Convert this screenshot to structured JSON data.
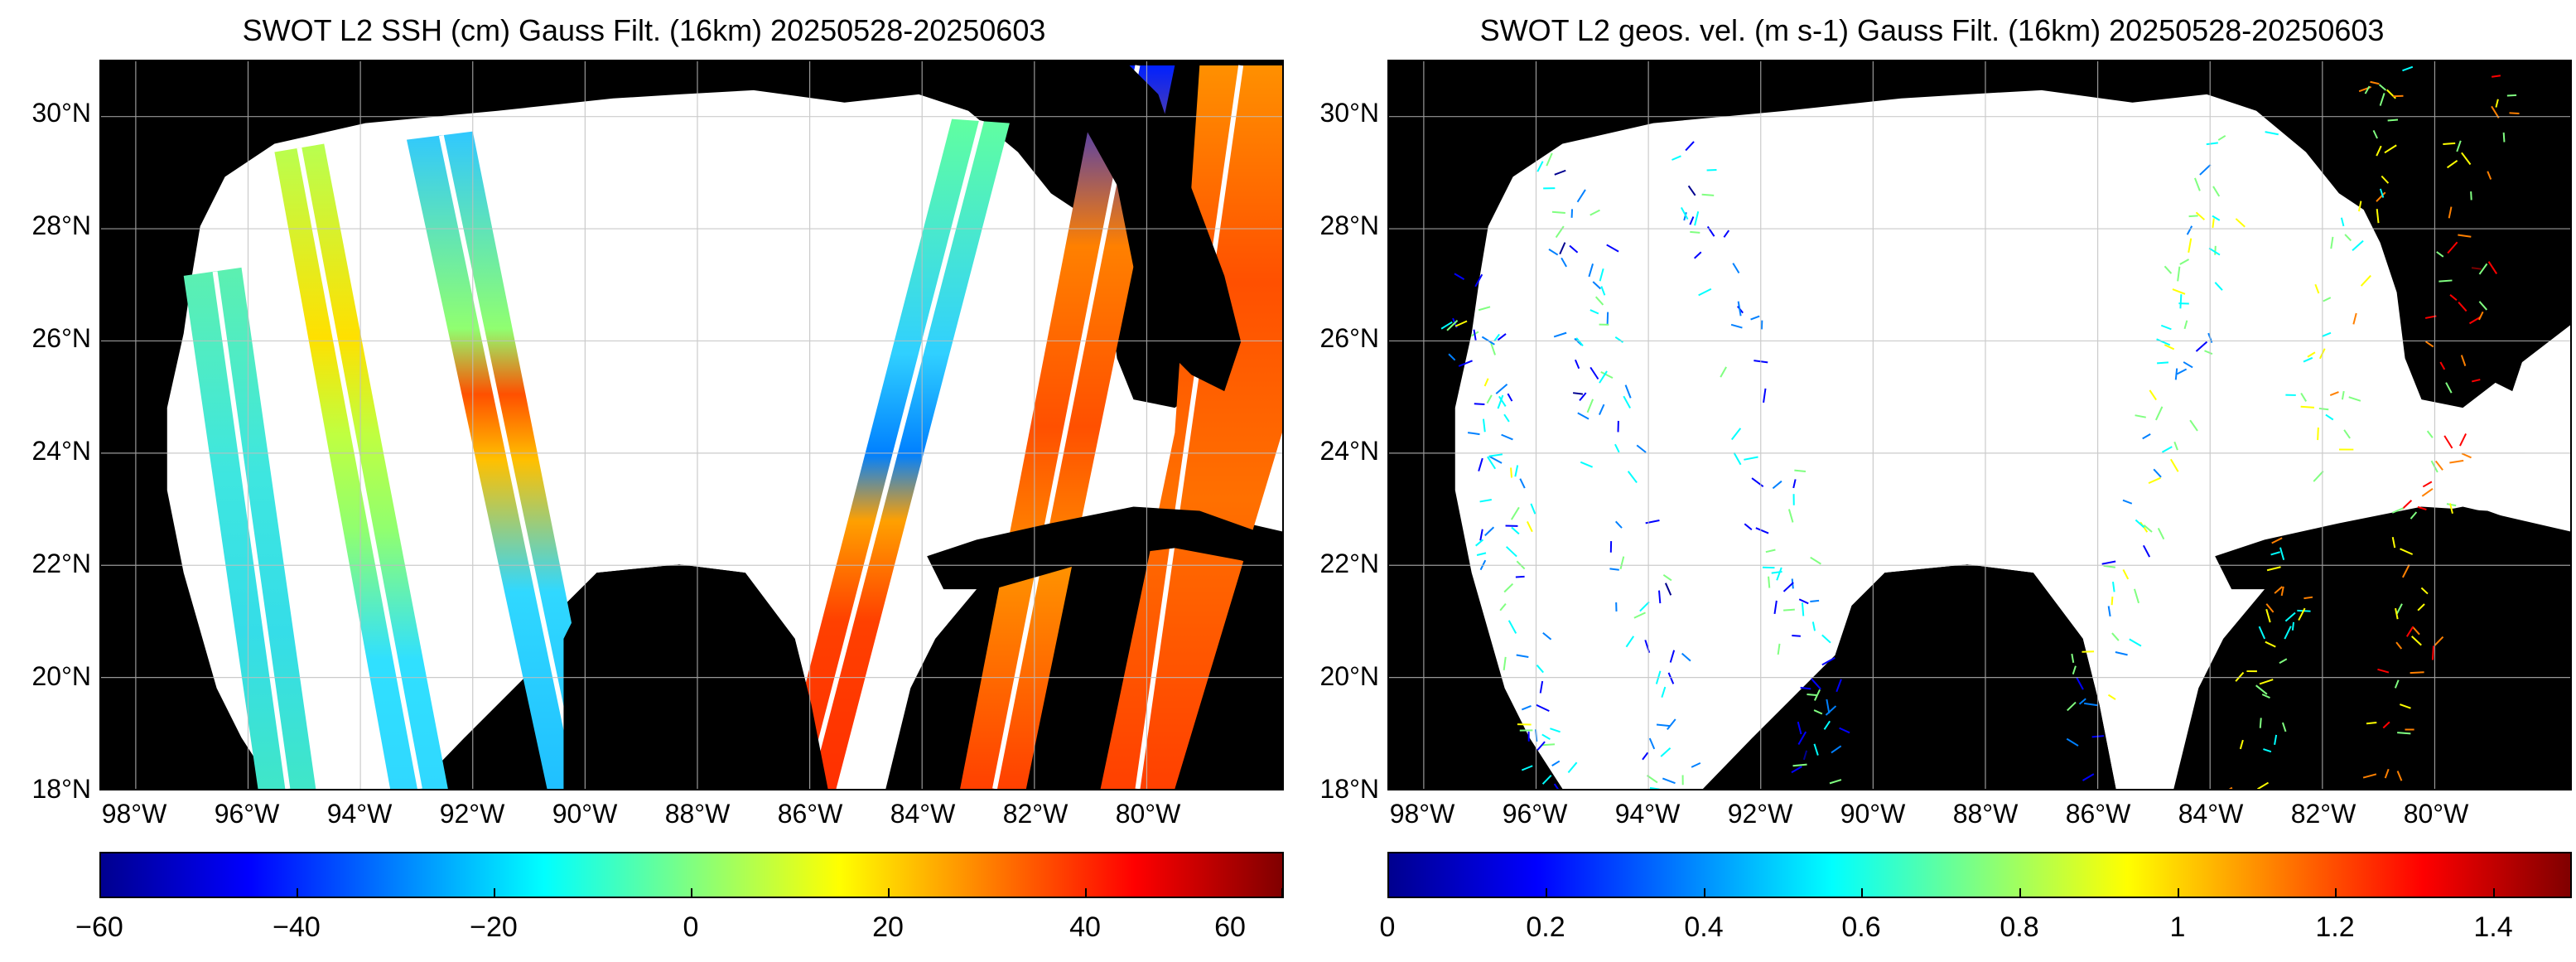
{
  "colors": {
    "land": "#000000",
    "ocean_nodata": "#ffffff",
    "grid": "#bfbfbf",
    "jet_scale": [
      "#00008f",
      "#0000ff",
      "#0080ff",
      "#00ffff",
      "#80ff80",
      "#ffff00",
      "#ff8000",
      "#ff0000",
      "#800000"
    ]
  },
  "left_panel": {
    "title": "SWOT L2 SSH (cm) Gauss Filt. (16km) 20250528-20250603",
    "colorbar_ticks": [
      "−60",
      "−40",
      "−20",
      "0",
      "20",
      "40",
      "60"
    ]
  },
  "right_panel": {
    "title": "SWOT L2 geos. vel. (m s-1) Gauss Filt. (16km) 20250528-20250603",
    "colorbar_ticks": [
      "0",
      "0.2",
      "0.4",
      "0.6",
      "0.8",
      "1",
      "1.2",
      "1.4"
    ]
  },
  "lat_labels": [
    "30°N",
    "28°N",
    "26°N",
    "24°N",
    "22°N",
    "20°N",
    "18°N"
  ],
  "lon_labels": [
    "98°W",
    "96°W",
    "94°W",
    "92°W",
    "90°W",
    "88°W",
    "86°W",
    "84°W",
    "82°W",
    "80°W"
  ]
}
